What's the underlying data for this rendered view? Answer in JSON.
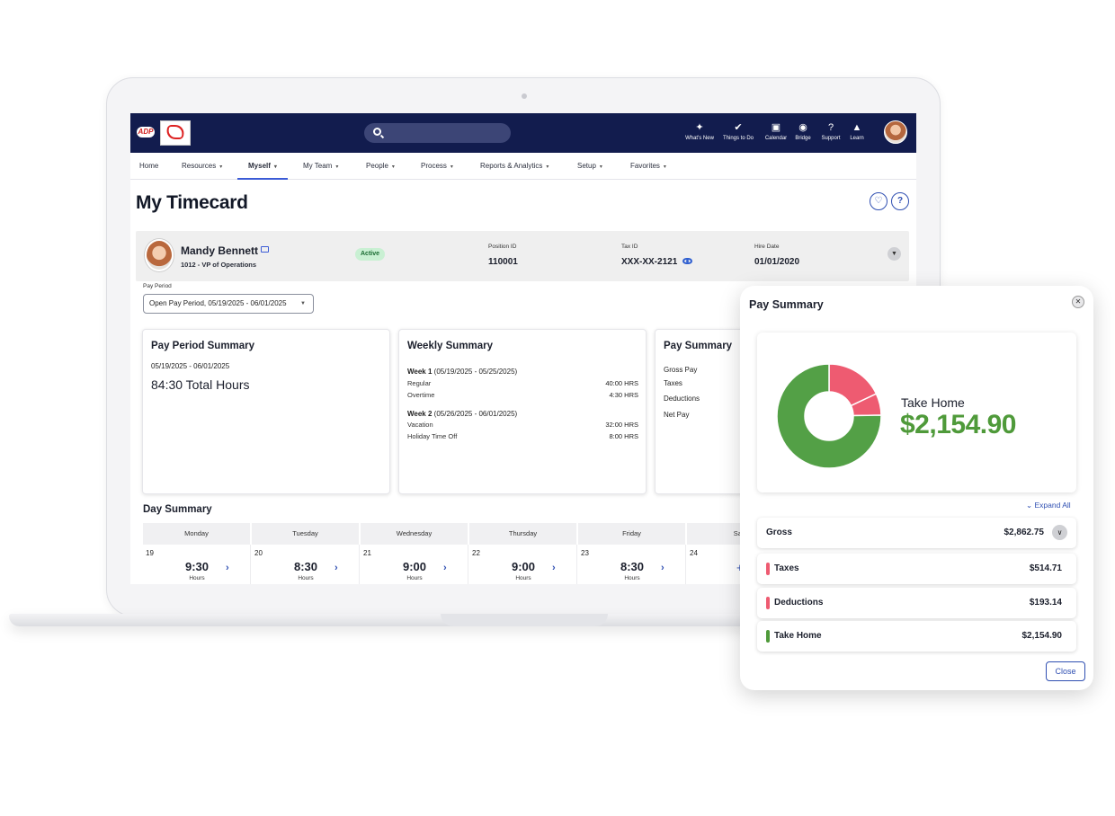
{
  "topbar": {
    "logo_text": "ADP",
    "tools": [
      {
        "label": "What's New",
        "icon": "lightbulb-icon",
        "glyph": "✦"
      },
      {
        "label": "Things to Do",
        "icon": "checkmark-icon",
        "glyph": "✔"
      },
      {
        "label": "Calendar",
        "icon": "calendar-icon",
        "glyph": "▣"
      },
      {
        "label": "Bridge",
        "icon": "bridge-icon",
        "glyph": "◉"
      },
      {
        "label": "Support",
        "icon": "help-icon",
        "glyph": "?"
      },
      {
        "label": "Learn",
        "icon": "graduation-cap-icon",
        "glyph": "▲"
      }
    ]
  },
  "menu": [
    {
      "label": "Home",
      "caret": false
    },
    {
      "label": "Resources",
      "caret": true
    },
    {
      "label": "Myself",
      "caret": true,
      "active": true
    },
    {
      "label": "My Team",
      "caret": true
    },
    {
      "label": "People",
      "caret": true
    },
    {
      "label": "Process",
      "caret": true
    },
    {
      "label": "Reports & Analytics",
      "caret": true
    },
    {
      "label": "Setup",
      "caret": true
    },
    {
      "label": "Favorites",
      "caret": true
    }
  ],
  "page": {
    "title": "My Timecard"
  },
  "employee": {
    "name": "Mandy Bennett",
    "role": "1012 - VP of Operations",
    "status": "Active",
    "position_id_label": "Position ID",
    "position_id": "110001",
    "tax_id_label": "Tax ID",
    "tax_id": "XXX-XX-2121",
    "hire_date_label": "Hire Date",
    "hire_date": "01/01/2020"
  },
  "pay_period": {
    "label": "Pay Period",
    "selected": "Open Pay Period, 05/19/2025 - 06/01/2025"
  },
  "pay_period_summary": {
    "title": "Pay Period Summary",
    "dates": "05/19/2025 - 06/01/2025",
    "total": "84:30 Total Hours"
  },
  "weekly_summary": {
    "title": "Weekly Summary",
    "weeks": [
      {
        "name": "Week 1",
        "range": "(05/19/2025 - 05/25/2025)",
        "lines": [
          {
            "label": "Regular",
            "value": "40:00 HRS"
          },
          {
            "label": "Overtime",
            "value": "4:30 HRS"
          }
        ]
      },
      {
        "name": "Week 2",
        "range": "(05/26/2025 - 06/01/2025)",
        "lines": [
          {
            "label": "Vacation",
            "value": "32:00 HRS"
          },
          {
            "label": "Holiday Time Off",
            "value": "8:00 HRS"
          }
        ]
      }
    ]
  },
  "pay_summary_card": {
    "title": "Pay Summary",
    "items": [
      "Gross Pay",
      "Taxes",
      "Deductions",
      "Net Pay"
    ]
  },
  "day_summary": {
    "title": "Day Summary",
    "days": [
      {
        "name": "Monday",
        "num": "19",
        "hours": "9:30",
        "unit": "Hours"
      },
      {
        "name": "Tuesday",
        "num": "20",
        "hours": "8:30",
        "unit": "Hours"
      },
      {
        "name": "Wednesday",
        "num": "21",
        "hours": "9:00",
        "unit": "Hours"
      },
      {
        "name": "Thursday",
        "num": "22",
        "hours": "9:00",
        "unit": "Hours"
      },
      {
        "name": "Friday",
        "num": "23",
        "hours": "8:30",
        "unit": "Hours"
      },
      {
        "name": "Satu",
        "num": "24",
        "hours": "",
        "unit": ""
      }
    ]
  },
  "panel": {
    "title": "Pay Summary",
    "take_home_label": "Take Home",
    "take_home_amount": "$2,154.90",
    "expand_all": "Expand All",
    "close_label": "Close",
    "rows": [
      {
        "label": "Gross",
        "value": "$2,862.75",
        "color": "",
        "expandable": true
      },
      {
        "label": "Taxes",
        "value": "$514.71",
        "color": "#ee5b71",
        "expandable": false
      },
      {
        "label": "Deductions",
        "value": "$193.14",
        "color": "#ee5b71",
        "expandable": false
      },
      {
        "label": "Take Home",
        "value": "$2,154.90",
        "color": "#4f9a3a",
        "expandable": false
      }
    ]
  },
  "chart_data": {
    "type": "pie",
    "categories": [
      "Taxes",
      "Deductions",
      "Take Home"
    ],
    "values": [
      514.71,
      193.14,
      2154.9
    ],
    "colors": [
      "#ee5b71",
      "#ee5b71",
      "#53a046"
    ]
  }
}
